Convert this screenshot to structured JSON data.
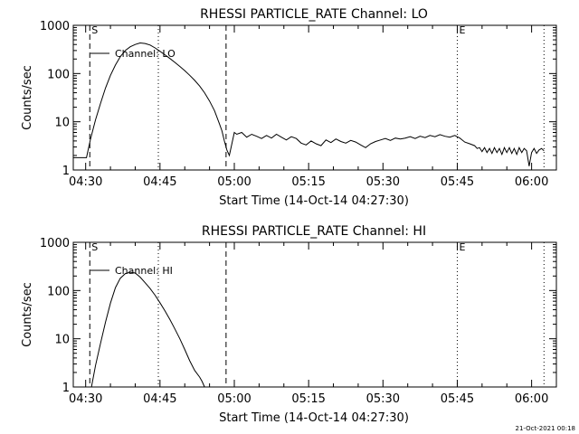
{
  "footer": {
    "timestamp": "21-Oct-2021 00:18"
  },
  "chart_data": [
    {
      "type": "line",
      "title": "RHESSI PARTICLE_RATE Channel: LO",
      "xlabel": "Start Time (14-Oct-14 04:27:30)",
      "ylabel": "Counts/sec",
      "yscale": "log",
      "xlim": [
        "04:27:30",
        "06:05:00"
      ],
      "ylim": [
        1,
        1000
      ],
      "x_ticks": [
        "04:30",
        "04:45",
        "05:00",
        "05:15",
        "05:30",
        "05:45",
        "06:00"
      ],
      "y_ticks": [
        "1",
        "10",
        "100",
        "1000"
      ],
      "legend": "Channel: LO",
      "markers": [
        {
          "time": "04:30:50",
          "style": "dashed",
          "label": "S"
        },
        {
          "time": "04:44:40",
          "style": "dotted",
          "label": ""
        },
        {
          "time": "04:58:20",
          "style": "dashed",
          "label": ""
        },
        {
          "time": "05:45:00",
          "style": "dotted",
          "label": "E"
        },
        {
          "time": "06:02:30",
          "style": "dotted",
          "label": ""
        }
      ],
      "series": [
        {
          "x": [
            "04:27:30",
            "04:30:10",
            "04:30:30",
            "04:31:00",
            "04:32:00",
            "04:33:00",
            "04:34:00",
            "04:35:00",
            "04:36:00",
            "04:37:00",
            "04:38:00",
            "04:39:00",
            "04:40:00",
            "04:41:00",
            "04:42:00",
            "04:43:00",
            "04:44:00",
            "04:45:00",
            "04:46:00",
            "04:47:00",
            "04:48:00",
            "04:49:00",
            "04:50:00",
            "04:51:00",
            "04:52:00",
            "04:53:00",
            "04:54:00",
            "04:55:00",
            "04:56:00",
            "04:57:00",
            "04:57:30",
            "04:58:00",
            "04:58:30",
            "04:59:00",
            "04:59:30",
            "05:00:00",
            "05:00:30",
            "05:01:30",
            "05:02:30",
            "05:03:30",
            "05:04:30",
            "05:05:30",
            "05:06:30",
            "05:07:30",
            "05:08:30",
            "05:09:30",
            "05:10:30",
            "05:11:30",
            "05:12:30",
            "05:13:30",
            "05:14:30",
            "05:15:30",
            "05:16:30",
            "05:17:30",
            "05:18:30",
            "05:19:30",
            "05:20:30",
            "05:21:30",
            "05:22:30",
            "05:23:30",
            "05:24:30",
            "05:25:30",
            "05:26:30",
            "05:27:30",
            "05:28:30",
            "05:29:30",
            "05:30:30",
            "05:31:30",
            "05:32:30",
            "05:33:30",
            "05:34:30",
            "05:35:30",
            "05:36:30",
            "05:37:30",
            "05:38:30",
            "05:39:30",
            "05:40:30",
            "05:41:30",
            "05:42:30",
            "05:43:30",
            "05:44:30",
            "05:45:30",
            "05:46:30",
            "05:47:30",
            "05:48:30",
            "05:49:00",
            "05:49:30",
            "05:50:00",
            "05:50:30",
            "05:51:00",
            "05:51:30",
            "05:52:00",
            "05:52:30",
            "05:53:00",
            "05:53:30",
            "05:54:00",
            "05:54:30",
            "05:55:00",
            "05:55:30",
            "05:56:00",
            "05:56:30",
            "05:57:00",
            "05:57:30",
            "05:58:00",
            "05:58:30",
            "05:59:00",
            "05:59:30",
            "06:00:00",
            "06:00:30",
            "06:01:00",
            "06:01:30",
            "06:02:00",
            "06:02:30"
          ],
          "y": [
            1.8,
            1.8,
            2.6,
            4.5,
            11,
            24,
            50,
            92,
            150,
            225,
            300,
            360,
            400,
            430,
            420,
            390,
            340,
            290,
            245,
            205,
            170,
            140,
            115,
            92,
            72,
            55,
            40,
            27,
            17,
            9,
            6.5,
            4,
            2.6,
            2,
            3.5,
            6,
            5.5,
            6,
            4.8,
            5.5,
            5,
            4.5,
            5.2,
            4.6,
            5.5,
            4.8,
            4.2,
            4.9,
            4.5,
            3.6,
            3.3,
            4,
            3.5,
            3.2,
            4.2,
            3.7,
            4.4,
            3.9,
            3.6,
            4.1,
            3.8,
            3.3,
            2.9,
            3.5,
            3.9,
            4.2,
            4.5,
            4.1,
            4.6,
            4.4,
            4.6,
            4.9,
            4.5,
            5,
            4.7,
            5.2,
            4.9,
            5.4,
            5,
            4.8,
            5.2,
            4.6,
            3.8,
            3.5,
            3.2,
            2.8,
            2.9,
            2.4,
            2.9,
            2.3,
            2.8,
            2.2,
            2.9,
            2.3,
            2.8,
            2.1,
            2.9,
            2.3,
            2.9,
            2.2,
            2.8,
            2.1,
            2.9,
            2.3,
            2.8,
            2.5,
            1.2,
            2.3,
            2.8,
            2.2,
            2.6,
            2.8,
            2.5
          ]
        }
      ]
    },
    {
      "type": "line",
      "title": "RHESSI PARTICLE_RATE Channel: HI",
      "xlabel": "Start Time (14-Oct-14 04:27:30)",
      "ylabel": "Counts/sec",
      "yscale": "log",
      "xlim": [
        "04:27:30",
        "06:05:00"
      ],
      "ylim": [
        1,
        1000
      ],
      "x_ticks": [
        "04:30",
        "04:45",
        "05:00",
        "05:15",
        "05:30",
        "05:45",
        "06:00"
      ],
      "y_ticks": [
        "1",
        "10",
        "100",
        "1000"
      ],
      "legend": "Channel: HI",
      "markers": [
        {
          "time": "04:30:50",
          "style": "dashed",
          "label": "S"
        },
        {
          "time": "04:44:40",
          "style": "dotted",
          "label": ""
        },
        {
          "time": "04:58:20",
          "style": "dashed",
          "label": ""
        },
        {
          "time": "05:45:00",
          "style": "dotted",
          "label": "E"
        },
        {
          "time": "06:02:30",
          "style": "dotted",
          "label": ""
        }
      ],
      "series": [
        {
          "x": [
            "04:31:10",
            "04:32:00",
            "04:33:00",
            "04:34:00",
            "04:35:00",
            "04:36:00",
            "04:37:00",
            "04:38:00",
            "04:39:00",
            "04:40:00",
            "04:41:00",
            "04:42:00",
            "04:43:00",
            "04:44:00",
            "04:45:00",
            "04:46:00",
            "04:47:00",
            "04:48:00",
            "04:49:00",
            "04:50:00",
            "04:51:00",
            "04:52:00",
            "04:53:00",
            "04:53:30",
            "04:54:00"
          ],
          "y": [
            1,
            2.8,
            8,
            22,
            55,
            115,
            180,
            225,
            240,
            230,
            190,
            145,
            110,
            80,
            56,
            38,
            25,
            16,
            10,
            6,
            3.5,
            2.2,
            1.6,
            1.3,
            1
          ]
        }
      ]
    }
  ]
}
